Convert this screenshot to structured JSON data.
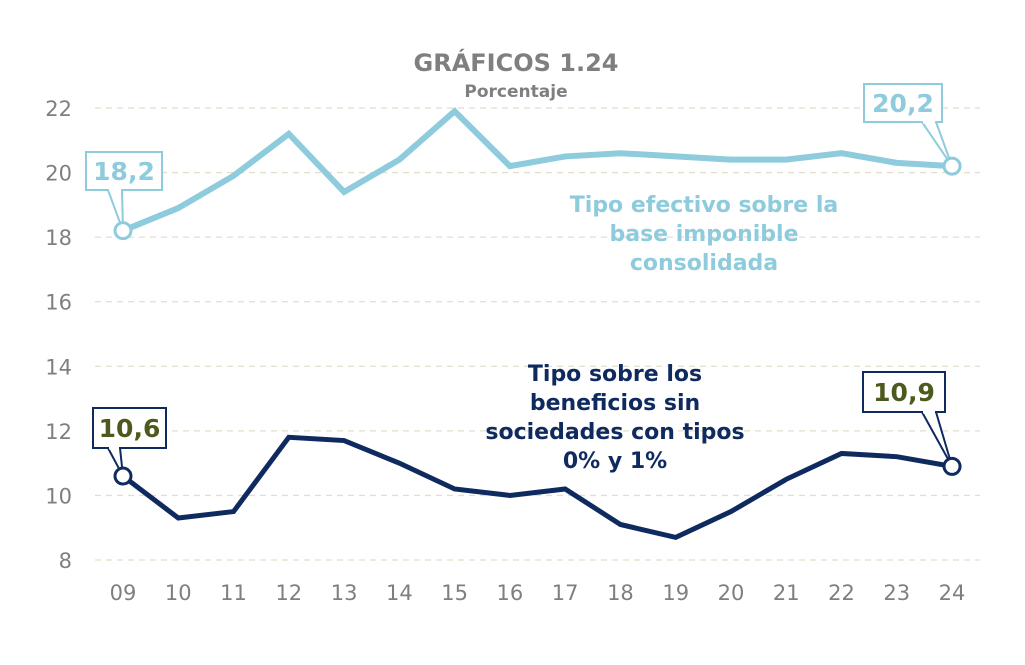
{
  "chart_data": {
    "type": "line",
    "title": "GRÁFICOS 1.24",
    "subtitle": "Porcentaje",
    "xlabel": "",
    "ylabel": "",
    "categories": [
      "09",
      "10",
      "11",
      "12",
      "13",
      "14",
      "15",
      "16",
      "17",
      "18",
      "19",
      "20",
      "21",
      "22",
      "23",
      "24"
    ],
    "ylim": [
      8,
      22
    ],
    "yticks": [
      8,
      10,
      12,
      14,
      16,
      18,
      20,
      22
    ],
    "grid": "horizontal dashed",
    "series": [
      {
        "name": "Tipo efectivo sobre la base imponible consolidada",
        "label_lines": [
          "Tipo efectivo sobre la",
          "base imponible",
          "consolidada"
        ],
        "color": "#8ecbdc",
        "values": [
          18.2,
          18.9,
          19.9,
          21.2,
          19.4,
          20.4,
          21.9,
          20.2,
          20.5,
          20.6,
          20.5,
          20.4,
          20.4,
          20.6,
          20.3,
          20.2
        ],
        "callouts": [
          {
            "index": 0,
            "text": "18,2"
          },
          {
            "index": 15,
            "text": "20,2"
          }
        ]
      },
      {
        "name": "Tipo sobre los beneficios sin sociedades con tipos 0% y 1%",
        "label_lines": [
          "Tipo sobre los",
          "beneficios sin",
          "sociedades con tipos",
          "0% y 1%"
        ],
        "color": "#0f2a5f",
        "values": [
          10.6,
          9.3,
          9.5,
          11.8,
          11.7,
          11.0,
          10.2,
          10.0,
          10.2,
          9.1,
          8.7,
          9.5,
          10.5,
          11.3,
          11.2,
          10.9
        ],
        "callouts": [
          {
            "index": 0,
            "text": "10,6"
          },
          {
            "index": 15,
            "text": "10,9"
          }
        ]
      }
    ],
    "callout_text_color_dark": "#4d5a1e"
  }
}
